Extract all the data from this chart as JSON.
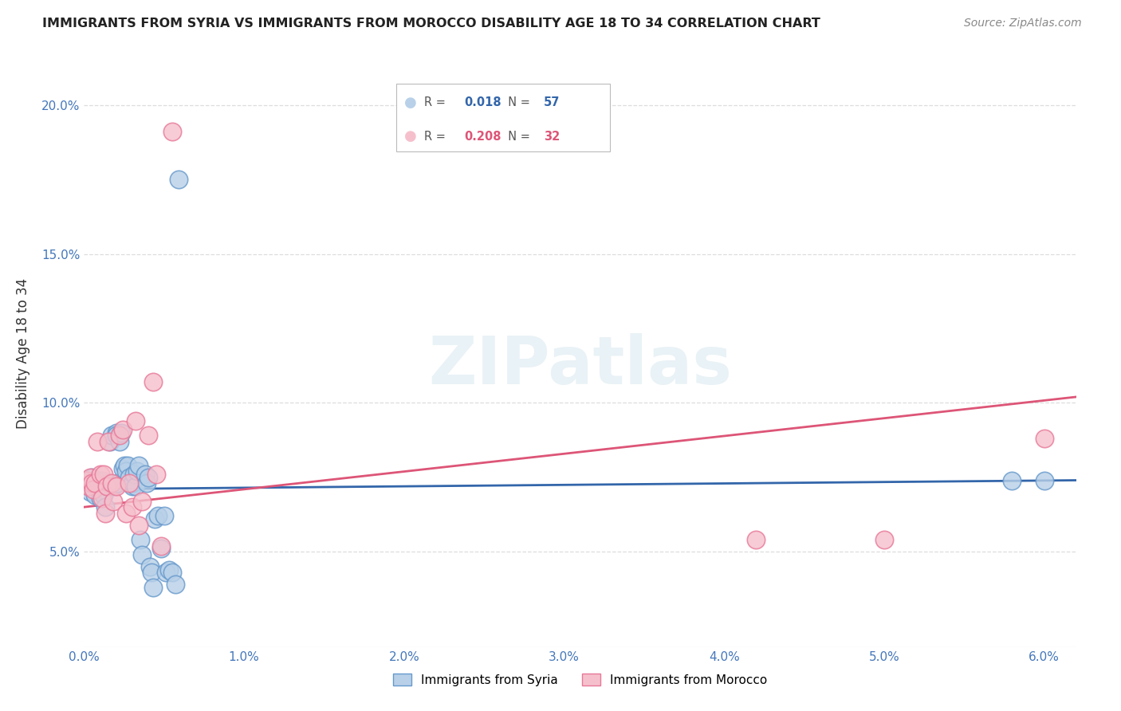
{
  "title": "IMMIGRANTS FROM SYRIA VS IMMIGRANTS FROM MOROCCO DISABILITY AGE 18 TO 34 CORRELATION CHART",
  "source": "Source: ZipAtlas.com",
  "ylabel": "Disability Age 18 to 34",
  "xlim": [
    0.0,
    0.062
  ],
  "ylim": [
    0.018,
    0.215
  ],
  "xticks": [
    0.0,
    0.01,
    0.02,
    0.03,
    0.04,
    0.05,
    0.06
  ],
  "yticks": [
    0.05,
    0.1,
    0.15,
    0.2
  ],
  "ytick_labels": [
    "5.0%",
    "10.0%",
    "15.0%",
    "20.0%"
  ],
  "xtick_labels": [
    "0.0%",
    "1.0%",
    "2.0%",
    "3.0%",
    "4.0%",
    "5.0%",
    "6.0%"
  ],
  "syria_color": "#b8d0e8",
  "syria_edge_color": "#6699cc",
  "morocco_color": "#f5c0cc",
  "morocco_edge_color": "#e87898",
  "trend_syria_color": "#3366aa",
  "trend_morocco_color": "#dd5577",
  "syria_R": 0.018,
  "syria_N": 57,
  "morocco_R": 0.208,
  "morocco_N": 32,
  "watermark": "ZIPatlas",
  "syria_label": "Immigrants from Syria",
  "morocco_label": "Immigrants from Morocco",
  "syria_x": [
    0.0002,
    0.0003,
    0.0004,
    0.0004,
    0.0005,
    0.0005,
    0.0006,
    0.0007,
    0.0007,
    0.0008,
    0.0009,
    0.001,
    0.001,
    0.0011,
    0.0012,
    0.0012,
    0.0013,
    0.0014,
    0.0015,
    0.0016,
    0.0017,
    0.0018,
    0.002,
    0.002,
    0.0021,
    0.0022,
    0.0023,
    0.0024,
    0.0025,
    0.0026,
    0.0027,
    0.0028,
    0.003,
    0.003,
    0.0031,
    0.0032,
    0.0033,
    0.0034,
    0.0035,
    0.0036,
    0.0038,
    0.0039,
    0.004,
    0.0041,
    0.0042,
    0.0043,
    0.0044,
    0.0046,
    0.0048,
    0.005,
    0.0051,
    0.0053,
    0.0055,
    0.0057,
    0.0059,
    0.058,
    0.06
  ],
  "syria_y": [
    0.072,
    0.073,
    0.074,
    0.07,
    0.073,
    0.075,
    0.073,
    0.072,
    0.069,
    0.074,
    0.073,
    0.068,
    0.072,
    0.074,
    0.071,
    0.069,
    0.065,
    0.072,
    0.073,
    0.087,
    0.089,
    0.072,
    0.09,
    0.089,
    0.073,
    0.087,
    0.09,
    0.078,
    0.079,
    0.077,
    0.079,
    0.075,
    0.072,
    0.073,
    0.076,
    0.072,
    0.077,
    0.079,
    0.054,
    0.049,
    0.076,
    0.073,
    0.075,
    0.045,
    0.043,
    0.038,
    0.061,
    0.062,
    0.051,
    0.062,
    0.043,
    0.044,
    0.043,
    0.039,
    0.175,
    0.074,
    0.074
  ],
  "morocco_x": [
    0.0002,
    0.0003,
    0.0004,
    0.0005,
    0.0006,
    0.0007,
    0.0008,
    0.001,
    0.0011,
    0.0012,
    0.0013,
    0.0014,
    0.0015,
    0.0017,
    0.0018,
    0.002,
    0.0022,
    0.0024,
    0.0026,
    0.0028,
    0.003,
    0.0032,
    0.0034,
    0.0036,
    0.004,
    0.0043,
    0.0045,
    0.0048,
    0.0055,
    0.042,
    0.05,
    0.06
  ],
  "morocco_y": [
    0.074,
    0.072,
    0.075,
    0.073,
    0.071,
    0.073,
    0.087,
    0.076,
    0.068,
    0.076,
    0.063,
    0.072,
    0.087,
    0.073,
    0.067,
    0.072,
    0.089,
    0.091,
    0.063,
    0.073,
    0.065,
    0.094,
    0.059,
    0.067,
    0.089,
    0.107,
    0.076,
    0.052,
    0.191,
    0.054,
    0.054,
    0.088
  ],
  "background_color": "#ffffff",
  "grid_color": "#dddddd",
  "trend_syria_x0": 0.0,
  "trend_syria_y0": 0.071,
  "trend_syria_x1": 0.062,
  "trend_syria_y1": 0.074,
  "trend_morocco_x0": 0.0,
  "trend_morocco_y0": 0.065,
  "trend_morocco_x1": 0.062,
  "trend_morocco_y1": 0.102
}
